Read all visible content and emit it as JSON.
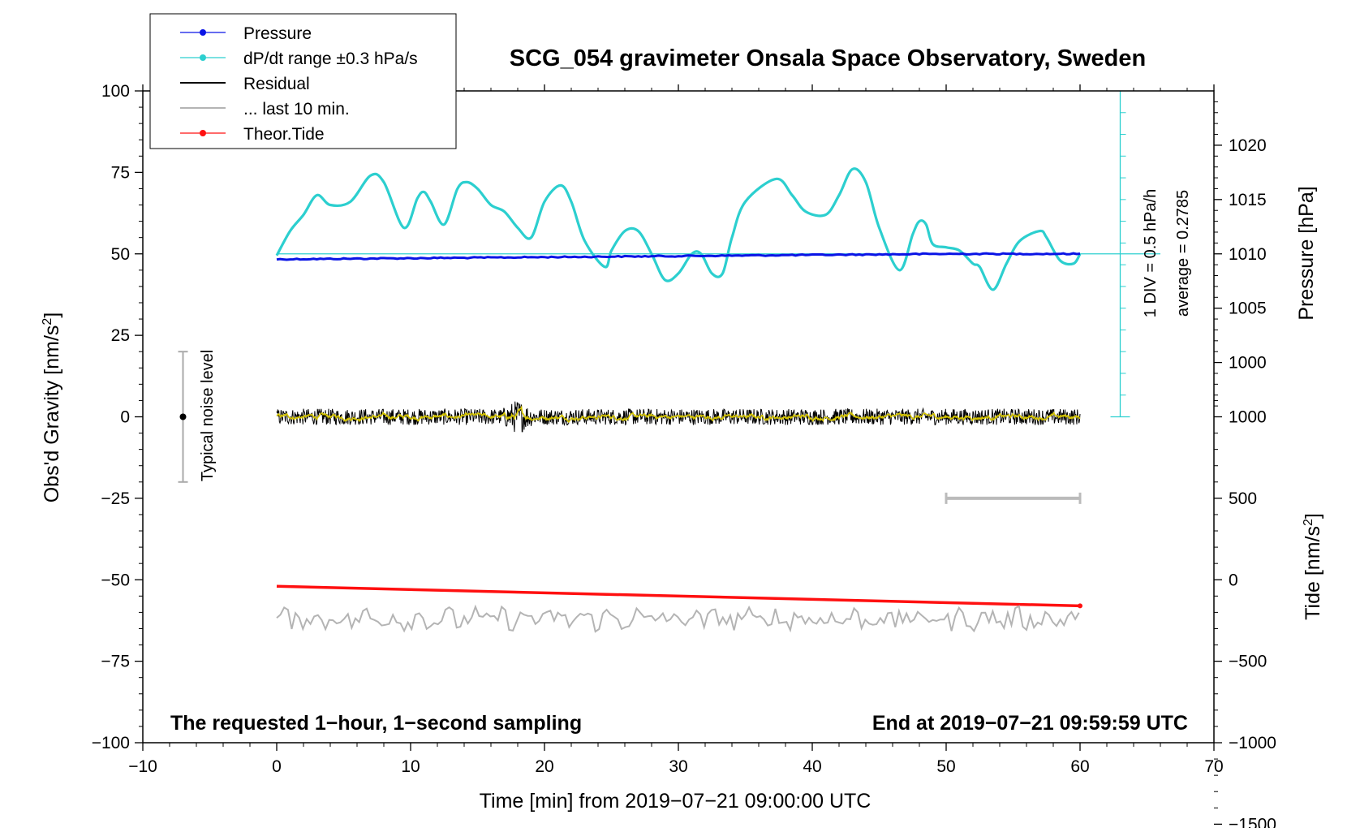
{
  "chart_data": {
    "type": "line",
    "title": "SCG_054 gravimeter Onsala Space Observatory, Sweden",
    "xlabel": "Time [min] from 2019−07−21 09:00:00 UTC",
    "ylabel_left": "Obs'd Gravity [nm/s",
    "ylabel_left_sup": "2",
    "ylabel_left_end": "]",
    "ylabel_right_top": "Pressure [hPa]",
    "ylabel_right_bottom": "Tide [nm/s",
    "ylabel_right_bottom_sup": "2",
    "ylabel_right_bottom_end": "]",
    "xlim": [
      -10,
      70
    ],
    "ylim_left": [
      -100,
      100
    ],
    "x_ticks": [
      "−10",
      "0",
      "10",
      "20",
      "30",
      "40",
      "50",
      "60",
      "70"
    ],
    "y_left_ticks": [
      "100",
      "75",
      "50",
      "25",
      "0",
      "−25",
      "−50",
      "−75",
      "−100"
    ],
    "y_pressure_ticks": [
      "1020",
      "1015",
      "1010",
      "1005",
      "1000"
    ],
    "y_tide_ticks": [
      "1000",
      "500",
      "0",
      "−500",
      "−1000",
      "−1500"
    ],
    "annotation_bottom_left": "The requested 1−hour, 1−second sampling",
    "annotation_bottom_right": "End at 2019−07−21 09:59:59 UTC",
    "noise_label": "Typical noise level",
    "noise_range_nms2": [
      -20,
      20
    ],
    "dpdt_scale_label": "1 DIV = 0.5 hPa/h",
    "dpdt_average_label": "average = 0.2785",
    "last10_bar_minutes": [
      50,
      60
    ],
    "legend": [
      {
        "label": "Pressure",
        "color": "#0a14e6",
        "marker": "dot"
      },
      {
        "label": "dP/dt range ±0.3 hPa/s",
        "color": "#2ccfcf",
        "marker": "dot"
      },
      {
        "label": "Residual",
        "color": "#000000",
        "marker": "none"
      },
      {
        "label": "... last 10 min.",
        "color": "#b4b4b4",
        "marker": "none"
      },
      {
        "label": "Theor.Tide",
        "color": "#ff1010",
        "marker": "dot"
      }
    ],
    "series": [
      {
        "name": "Pressure",
        "units": "hPa",
        "color": "#0a14e6",
        "x": [
          0,
          10,
          20,
          30,
          40,
          50,
          60
        ],
        "y": [
          1009.5,
          1009.6,
          1009.7,
          1009.8,
          1009.9,
          1010.0,
          1010.0
        ]
      },
      {
        "name": "dP/dt range ±0.3 hPa/s",
        "units": "nm/s2 (plot scale)",
        "color": "#2ccfcf",
        "x": [
          0,
          1,
          2,
          3,
          4,
          5.5,
          7,
          8,
          9.5,
          10.5,
          11,
          11.5,
          12.5,
          13.5,
          14.2,
          15,
          16,
          17,
          18,
          19,
          20,
          21.2,
          22,
          23,
          24.5,
          25,
          26,
          27,
          28,
          29,
          30,
          31,
          31.7,
          32.5,
          33.3,
          34,
          35,
          37.3,
          38.5,
          39.5,
          41,
          42,
          43,
          44,
          45,
          46.5,
          47.5,
          48,
          48.5,
          49,
          50,
          51,
          52,
          52.5,
          53.5,
          54.5,
          55.5,
          57,
          57.5,
          58.5,
          59.5,
          60
        ],
        "y": [
          49.5,
          57,
          62,
          68,
          65,
          66,
          74,
          72,
          58,
          67,
          69,
          66,
          59,
          70,
          72,
          70,
          65,
          63,
          58,
          55,
          66,
          71,
          66,
          54,
          46,
          51,
          57,
          57,
          50,
          42,
          44,
          50,
          50,
          44,
          44,
          55,
          66,
          73,
          68,
          63,
          62,
          68,
          76,
          72,
          58,
          45,
          56,
          60,
          59,
          53,
          52,
          51,
          47,
          46,
          39,
          47,
          54,
          57,
          55,
          48,
          47,
          50
        ]
      },
      {
        "name": "Residual",
        "units": "nm/s2",
        "color": "#000000",
        "x": [
          0,
          60
        ],
        "y": [
          0,
          0
        ],
        "amplitude": 2.5,
        "disturbance_at_min": 18
      },
      {
        "name": "... last 10 min.",
        "units": "nm/s2",
        "color": "#b4b4b4",
        "x": [
          0,
          60
        ],
        "y": [
          -62,
          -62
        ],
        "amplitude": 3
      },
      {
        "name": "Theor.Tide",
        "units": "nm/s2",
        "color": "#ff1010",
        "x": [
          0,
          60
        ],
        "y": [
          -52,
          -58
        ]
      }
    ]
  }
}
